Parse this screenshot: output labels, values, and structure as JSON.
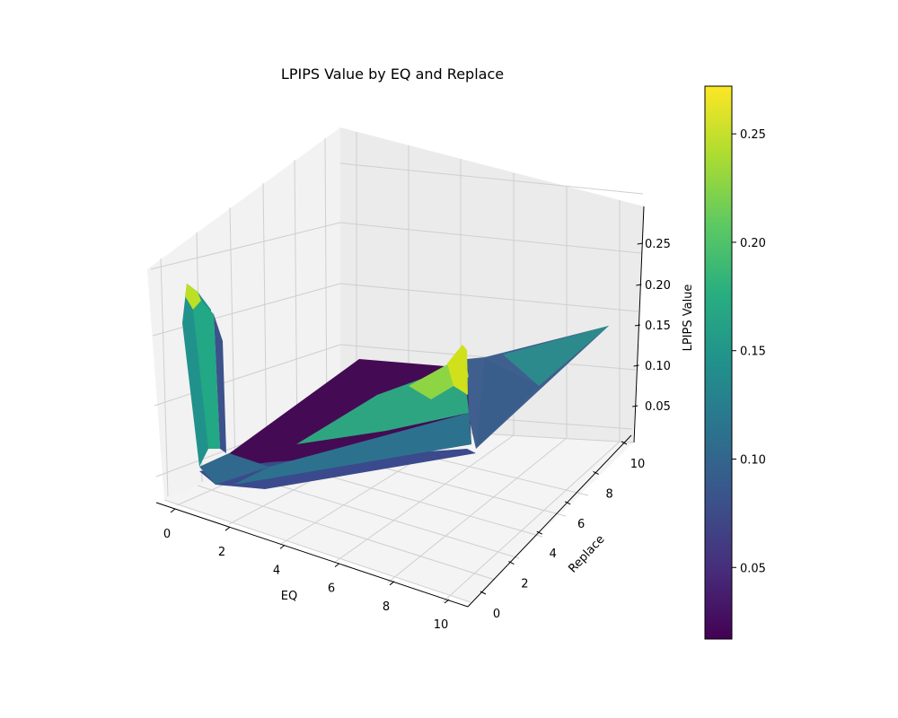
{
  "chart_data": {
    "type": "surface",
    "title": "LPIPS Value by EQ and Replace",
    "xlabel": "EQ",
    "ylabel": "Replace",
    "zlabel": "LPIPS Value",
    "xlim": [
      0,
      10
    ],
    "ylim": [
      0,
      10
    ],
    "zlim": [
      0.0,
      0.28
    ],
    "x_ticks": [
      "0",
      "2",
      "4",
      "6",
      "8",
      "10"
    ],
    "y_ticks": [
      "0",
      "2",
      "4",
      "6",
      "8",
      "10"
    ],
    "z_ticks": [
      "0.05",
      "0.10",
      "0.15",
      "0.20",
      "0.25"
    ],
    "colormap": "viridis",
    "colorbar": {
      "label": "",
      "range": [
        0.017,
        0.272
      ],
      "ticks": [
        "0.05",
        "0.10",
        "0.15",
        "0.20",
        "0.25"
      ]
    },
    "grid": true,
    "surface_profile": {
      "eq_samples": [
        0,
        0.5,
        1,
        2,
        3,
        4,
        5,
        6,
        7,
        8,
        9,
        10
      ],
      "peak_at_eq0_replace10": 0.25,
      "ridge_at_replace10_eq7": 0.2,
      "corner_eq10_replace10": 0.14,
      "floor_value": 0.02
    }
  }
}
